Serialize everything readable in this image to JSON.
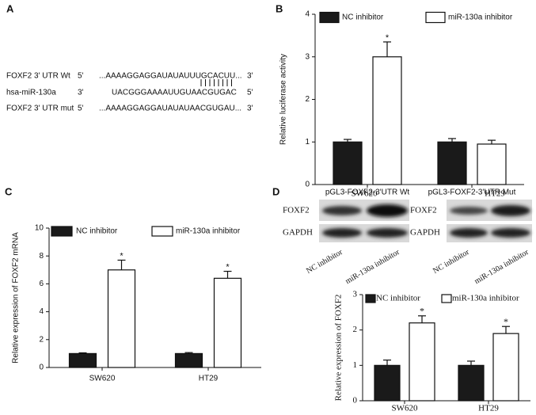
{
  "panel_labels": [
    "A",
    "B",
    "C",
    "D"
  ],
  "alignment": {
    "rows": [
      {
        "name": "FOXF2 3' UTR Wt",
        "start": "5'",
        "sequence": "...AAAAGGAGGAUAUAUUUGCACUU...",
        "end": "3'"
      },
      {
        "name": "hsa-miR-130a",
        "start": "3'",
        "sequence": "UACGGGAAAAUUGUAACGUGAC",
        "end": "5'"
      },
      {
        "name": "FOXF2 3' UTR mut",
        "start": "5'",
        "sequence": "...AAAAGGAGGAUAUAUAACGUGAU...",
        "end": "3'"
      }
    ]
  },
  "blot": {
    "cell_lines": [
      "SW620",
      "HT29"
    ],
    "proteins": [
      "FOXF2",
      "GAPDH"
    ],
    "lanes": [
      "NC inhibitor",
      "miR-130a inhibitor"
    ]
  },
  "chart_data": [
    {
      "type": "bar",
      "ylabel": "Relative luciferase activity",
      "categories": [
        "pGL3-FOXF2-3'UTR Wt",
        "pGL3-FOXF2-3'UTR Mut"
      ],
      "series": [
        {
          "name": "NC inhibitor",
          "color": "#1a1a1a",
          "values": [
            1.0,
            1.0
          ],
          "errors": [
            0.06,
            0.08
          ]
        },
        {
          "name": "miR-130a inhibitor",
          "color": "#ffffff",
          "values": [
            3.0,
            0.95
          ],
          "errors": [
            0.35,
            0.09
          ],
          "significance": [
            "*",
            null
          ]
        }
      ],
      "ylim": [
        0,
        4
      ],
      "yticks": [
        0,
        1,
        2,
        3,
        4
      ]
    },
    {
      "type": "bar",
      "ylabel": "Relative expression of FOXF2 mRNA",
      "categories": [
        "SW620",
        "HT29"
      ],
      "series": [
        {
          "name": "NC inhibitor",
          "color": "#1a1a1a",
          "values": [
            1.0,
            1.0
          ],
          "errors": [
            0.05,
            0.07
          ]
        },
        {
          "name": "miR-130a inhibitor",
          "color": "#ffffff",
          "values": [
            7.0,
            6.4
          ],
          "errors": [
            0.7,
            0.5
          ],
          "significance": [
            "*",
            "*"
          ]
        }
      ],
      "ylim": [
        0,
        10
      ],
      "yticks": [
        0,
        2,
        4,
        6,
        8,
        10
      ]
    },
    {
      "type": "bar",
      "ylabel": "Relative expression of FOXF2",
      "categories": [
        "SW620",
        "HT29"
      ],
      "series": [
        {
          "name": "NC inhibitor",
          "color": "#1a1a1a",
          "values": [
            1.0,
            1.0
          ],
          "errors": [
            0.15,
            0.12
          ]
        },
        {
          "name": "miR-130a inhibitor",
          "color": "#ffffff",
          "values": [
            2.2,
            1.9
          ],
          "errors": [
            0.2,
            0.2
          ],
          "significance": [
            "*",
            "*"
          ]
        }
      ],
      "ylim": [
        0,
        3
      ],
      "yticks": [
        0,
        1,
        2,
        3
      ]
    }
  ]
}
